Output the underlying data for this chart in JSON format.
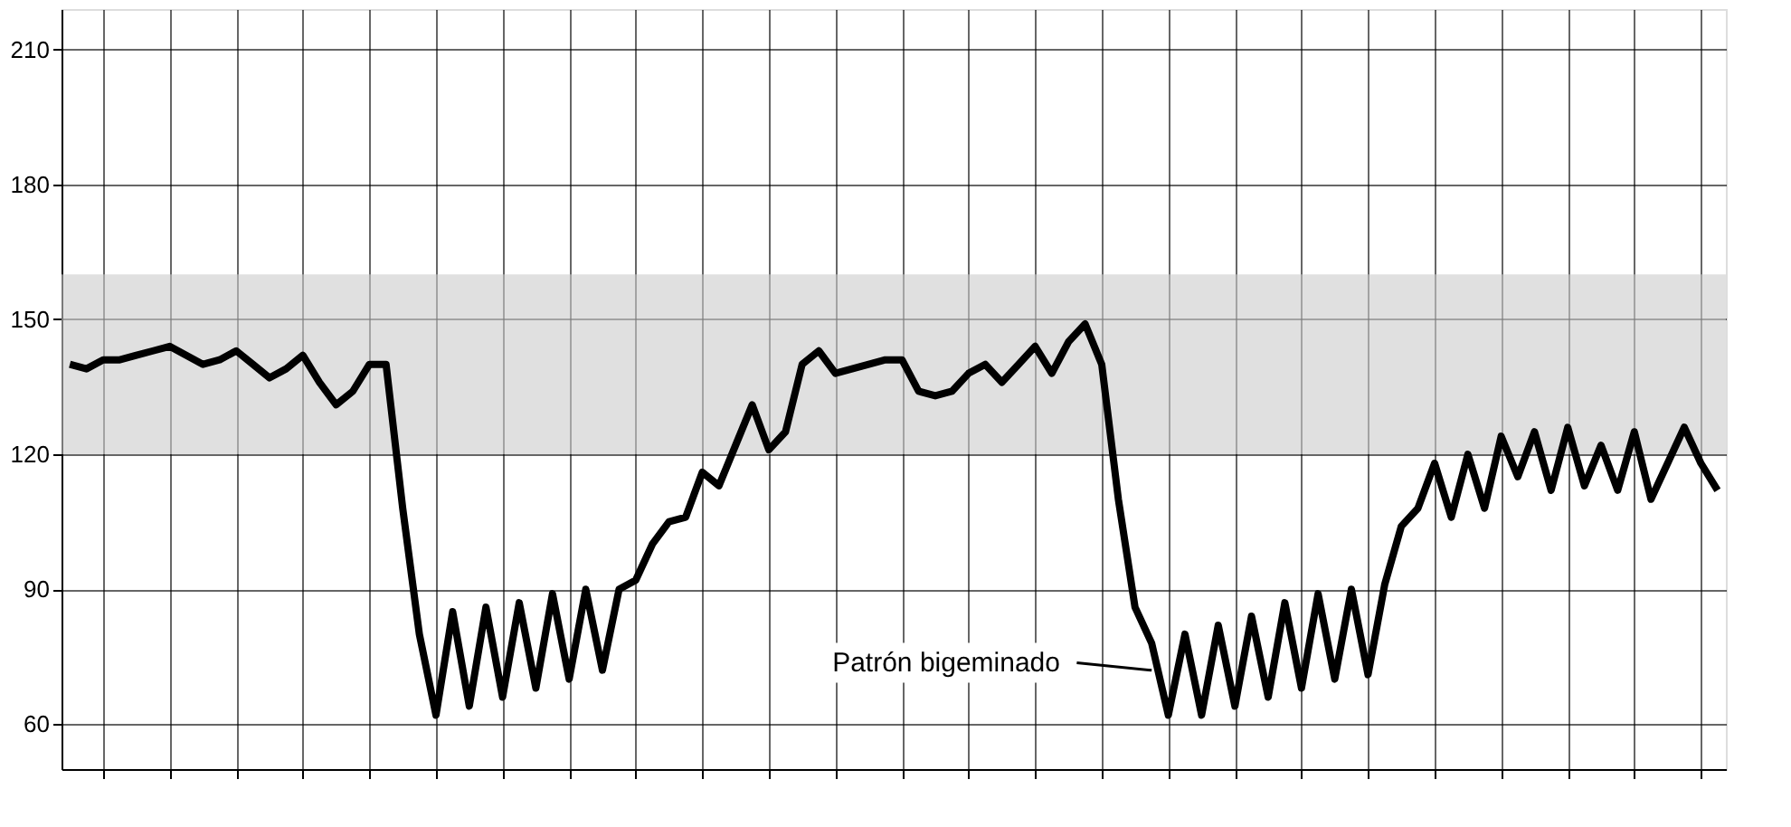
{
  "chart_data": {
    "type": "line",
    "categories": [
      null,
      null,
      null,
      null,
      null,
      null,
      null,
      null,
      null,
      null,
      null,
      null,
      null,
      null,
      null,
      null,
      null,
      null,
      null,
      null,
      null,
      null,
      null,
      null,
      null,
      null,
      null,
      null,
      null,
      null,
      null,
      null,
      null,
      null,
      null,
      null,
      null,
      null,
      null,
      null,
      null,
      null,
      null,
      null,
      null,
      null,
      null,
      null,
      null,
      null,
      null,
      null,
      null,
      null,
      null,
      null,
      null,
      null,
      null,
      null,
      null,
      null,
      null,
      null,
      null,
      null,
      null,
      null,
      null,
      null,
      null,
      null,
      null,
      null,
      null,
      null,
      null,
      null,
      null,
      null,
      null,
      null,
      null,
      null,
      null,
      null,
      null,
      null,
      null,
      null,
      null,
      null,
      null,
      null,
      null,
      null,
      null,
      null,
      null,
      null
    ],
    "series": [
      {
        "color": "#000000",
        "values": [
          140,
          139,
          141,
          141,
          142,
          143,
          144,
          142,
          140,
          141,
          143,
          140,
          137,
          139,
          142,
          136,
          131,
          134,
          140,
          140,
          108,
          80,
          62,
          85,
          64,
          86,
          66,
          87,
          68,
          89,
          70,
          90,
          72,
          90,
          92,
          100,
          105,
          106,
          116,
          113,
          122,
          131,
          121,
          125,
          140,
          143,
          138,
          139,
          140,
          141,
          141,
          134,
          133,
          134,
          138,
          140,
          136,
          140,
          144,
          138,
          145,
          149,
          140,
          110,
          86,
          78,
          62,
          80,
          62,
          82,
          64,
          84,
          66,
          87,
          68,
          89,
          70,
          90,
          71,
          91,
          104,
          108,
          118,
          106,
          120,
          108,
          124,
          115,
          125,
          112,
          126,
          113,
          122,
          112,
          125,
          110,
          118,
          126,
          118,
          112
        ]
      }
    ],
    "ylim": [
      50,
      219
    ],
    "yticks": [
      60,
      90,
      120,
      150,
      180,
      210
    ],
    "grid": true,
    "tick_labels": "y",
    "bands": [
      {
        "axis": "y",
        "from": 120,
        "to": 160,
        "color": "#cccccc"
      }
    ],
    "annotations": [
      "Patrón bigeminado"
    ]
  }
}
